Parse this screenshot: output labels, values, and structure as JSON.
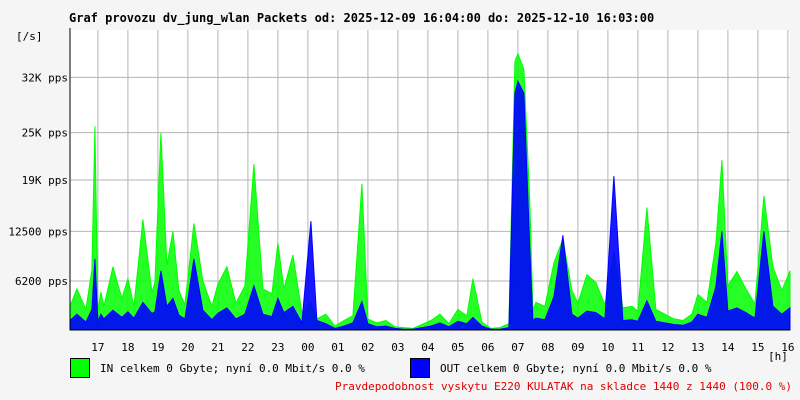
{
  "title": "Graf provozu dv_jung_wlan Packets od: 2025-12-09 16:04:00 do: 2025-12-10 16:03:00",
  "unit_label": "[/s]",
  "legend": {
    "in_text": "IN celkem 0 Gbyte; nyní   0.0 Mbit/s 0.0 %",
    "out_text": "OUT celkem 0 Gbyte; nyní   0.0 Mbit/s 0.0 %",
    "in_color": "#00ff00",
    "out_color": "#0000ff"
  },
  "footnote": "Pravdepodobnost vyskytu E220 KULATAK na skladce 1440 z 1440 (100.0 %)",
  "footnote_color": "#e00000",
  "chart_data": {
    "type": "area",
    "x_unit": "[h]",
    "x_ticks": [
      "17",
      "18",
      "19",
      "20",
      "21",
      "22",
      "23",
      "00",
      "01",
      "02",
      "03",
      "04",
      "05",
      "06",
      "07",
      "08",
      "09",
      "10",
      "11",
      "12",
      "13",
      "14",
      "15",
      "16"
    ],
    "y_ticks": [
      {
        "label": "6200 pps",
        "value": 6200
      },
      {
        "label": "12500 pps",
        "value": 12500
      },
      {
        "label": "19K pps",
        "value": 19000
      },
      {
        "label": "25K pps",
        "value": 25000
      },
      {
        "label": "32K pps",
        "value": 32000
      }
    ],
    "ylim": [
      0,
      38000
    ],
    "x_range_hours": [
      16.07,
      40.07
    ],
    "grid": true,
    "series": [
      {
        "name": "IN",
        "color": "#00ff00",
        "x": [
          16.07,
          16.3,
          16.6,
          16.8,
          16.9,
          17.0,
          17.1,
          17.2,
          17.5,
          17.8,
          18.0,
          18.2,
          18.5,
          18.8,
          18.9,
          19.1,
          19.3,
          19.5,
          19.7,
          19.9,
          20.2,
          20.5,
          20.8,
          21.0,
          21.3,
          21.6,
          21.9,
          22.2,
          22.5,
          22.8,
          23.0,
          23.2,
          23.5,
          23.8,
          24.1,
          24.3,
          24.6,
          24.9,
          25.2,
          25.5,
          25.8,
          26.0,
          26.3,
          26.6,
          26.9,
          27.2,
          27.5,
          27.8,
          28.1,
          28.4,
          28.7,
          29.0,
          29.3,
          29.5,
          29.8,
          30.1,
          30.4,
          30.7,
          30.9,
          31.0,
          31.2,
          31.4,
          31.5,
          31.6,
          31.9,
          32.2,
          32.5,
          32.8,
          33.0,
          33.3,
          33.6,
          33.9,
          34.2,
          34.5,
          34.8,
          35.0,
          35.3,
          35.6,
          35.9,
          36.2,
          36.5,
          36.8,
          37.0,
          37.3,
          37.6,
          37.8,
          38.0,
          38.3,
          38.6,
          38.9,
          39.2,
          39.5,
          39.8,
          40.07
        ],
        "y": [
          3000,
          5200,
          2600,
          7600,
          25800,
          2400,
          4800,
          3000,
          8000,
          4000,
          6500,
          3000,
          14000,
          4800,
          6000,
          25000,
          8200,
          12500,
          5000,
          3200,
          13500,
          6200,
          3000,
          5800,
          8000,
          3400,
          5600,
          21000,
          5200,
          4600,
          11000,
          5200,
          9500,
          2200,
          3500,
          1400,
          2000,
          500,
          1200,
          1800,
          18500,
          1400,
          900,
          1200,
          400,
          300,
          200,
          700,
          1200,
          2000,
          800,
          2600,
          1800,
          6500,
          1000,
          200,
          300,
          800,
          34000,
          35000,
          33000,
          16000,
          2500,
          3500,
          3000,
          8500,
          11500,
          5000,
          3400,
          7000,
          6000,
          3200,
          10000,
          2800,
          3000,
          2400,
          15500,
          2600,
          2000,
          1400,
          1200,
          2000,
          4500,
          3500,
          11000,
          21500,
          5600,
          7400,
          5200,
          3300,
          17000,
          8000,
          5000,
          7500
        ],
        "comment_free": true
      },
      {
        "name": "OUT",
        "color": "#0000ff",
        "x": [
          16.07,
          16.3,
          16.6,
          16.8,
          16.9,
          17.0,
          17.1,
          17.2,
          17.5,
          17.8,
          18.0,
          18.2,
          18.5,
          18.8,
          18.9,
          19.1,
          19.3,
          19.5,
          19.7,
          19.9,
          20.2,
          20.5,
          20.8,
          21.0,
          21.3,
          21.6,
          21.9,
          22.2,
          22.5,
          22.8,
          23.0,
          23.2,
          23.5,
          23.8,
          24.1,
          24.3,
          24.6,
          24.9,
          25.2,
          25.5,
          25.8,
          26.0,
          26.3,
          26.6,
          26.9,
          27.2,
          27.5,
          27.8,
          28.1,
          28.4,
          28.7,
          29.0,
          29.3,
          29.5,
          29.8,
          30.1,
          30.4,
          30.7,
          30.9,
          31.0,
          31.2,
          31.4,
          31.5,
          31.6,
          31.9,
          32.2,
          32.5,
          32.8,
          33.0,
          33.3,
          33.6,
          33.9,
          34.2,
          34.5,
          34.8,
          35.0,
          35.3,
          35.6,
          35.9,
          36.2,
          36.5,
          36.8,
          37.0,
          37.3,
          37.6,
          37.8,
          38.0,
          38.3,
          38.6,
          38.9,
          39.2,
          39.5,
          39.8,
          40.07
        ],
        "y": [
          1200,
          2000,
          1000,
          2600,
          9000,
          1100,
          2000,
          1400,
          2500,
          1600,
          2300,
          1500,
          3500,
          2100,
          2300,
          7500,
          3000,
          4000,
          1900,
          1400,
          9000,
          2500,
          1300,
          2100,
          2800,
          1400,
          2000,
          5600,
          2000,
          1700,
          4000,
          2200,
          3000,
          900,
          13800,
          1200,
          800,
          200,
          500,
          900,
          3600,
          800,
          400,
          500,
          200,
          100,
          100,
          300,
          500,
          900,
          400,
          1100,
          800,
          1600,
          500,
          100,
          100,
          300,
          30000,
          31500,
          30000,
          10000,
          1200,
          1500,
          1300,
          4200,
          12000,
          2000,
          1500,
          2400,
          2200,
          1400,
          19500,
          1200,
          1300,
          1100,
          3700,
          1100,
          900,
          700,
          600,
          1000,
          2000,
          1600,
          5500,
          12500,
          2400,
          2800,
          2200,
          1500,
          12500,
          3000,
          2000,
          2800
        ],
        "comment_free": true
      }
    ]
  }
}
